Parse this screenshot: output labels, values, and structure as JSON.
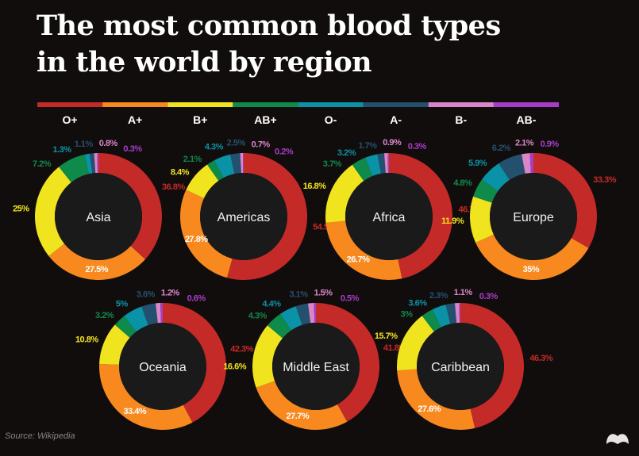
{
  "title_lines": [
    "The most common blood types",
    "in the world by region"
  ],
  "source": "Source: Wikipedia",
  "chart_data": {
    "type": "pie",
    "variant": "donut",
    "legend_placement": "top",
    "categories": [
      "O+",
      "A+",
      "B+",
      "AB+",
      "O-",
      "A-",
      "B-",
      "AB-"
    ],
    "colors": [
      "#c42a28",
      "#f7891f",
      "#f0e41e",
      "#0e8a4a",
      "#0a92a6",
      "#24506f",
      "#d886c8",
      "#a83cc8"
    ],
    "series": [
      {
        "name": "Asia",
        "values": [
          36.8,
          27.5,
          25,
          7.2,
          1.3,
          1.1,
          0.8,
          0.3
        ]
      },
      {
        "name": "Americas",
        "values": [
          54.5,
          27.8,
          8.4,
          2.1,
          4.3,
          2.5,
          0.7,
          0.2
        ]
      },
      {
        "name": "Africa",
        "values": [
          46.7,
          26.7,
          16.8,
          3.7,
          3.2,
          1.7,
          0.9,
          0.3
        ]
      },
      {
        "name": "Europe",
        "values": [
          33.3,
          35,
          11.9,
          4.8,
          5.9,
          6.2,
          2.1,
          0.9
        ]
      },
      {
        "name": "Oceania",
        "values": [
          42.3,
          33.4,
          10.8,
          3.2,
          5,
          3.6,
          1.2,
          0.6
        ]
      },
      {
        "name": "Middle East",
        "values": [
          41.8,
          27.7,
          16.6,
          4.3,
          4.4,
          3.1,
          1.5,
          0.5
        ]
      },
      {
        "name": "Caribbean",
        "values": [
          46.3,
          27.6,
          15.7,
          3,
          3.6,
          2.3,
          1.1,
          0.3
        ]
      }
    ]
  }
}
